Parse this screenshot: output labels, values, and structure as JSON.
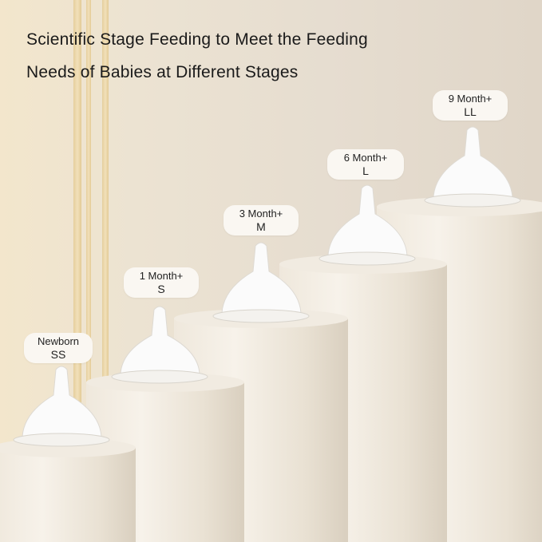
{
  "headline": {
    "line1": "Scientific Stage Feeding to Meet the Feeding",
    "line2": "Needs of Babies at Different Stages"
  },
  "stages": [
    {
      "age": "Newborn",
      "size": "SS"
    },
    {
      "age": "1 Month+",
      "size": "S"
    },
    {
      "age": "3 Month+",
      "size": "M"
    },
    {
      "age": "6 Month+",
      "size": "L"
    },
    {
      "age": "9 Month+",
      "size": "LL"
    }
  ]
}
